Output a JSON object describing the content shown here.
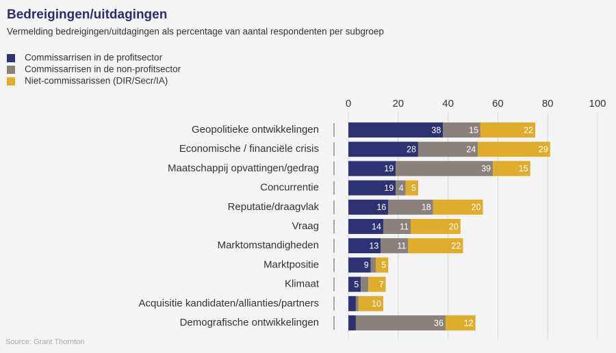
{
  "chart_data": {
    "type": "stacked-barh",
    "title": "Bedreigingen/uitdagingen",
    "subtitle": "Vermelding bedreigingen/uitdagingen als percentage van aantal respondenten per subgroep",
    "source": "Source: Grant Thornton",
    "categories": [
      "Geopolitieke ontwikkelingen",
      "Economische / financiële crisis",
      "Maatschappij opvattingen/gedrag",
      "Concurrentie",
      "Reputatie/draagvlak",
      "Vraag",
      "Marktomstandigheden",
      "Marktpositie",
      "Klimaat",
      "Acquisitie kandidaten/allianties/partners",
      "Demografische ontwikkelingen"
    ],
    "series": [
      {
        "name": "Commissarrisen in de profitsector",
        "color": "#2e3272",
        "values": [
          38,
          28,
          19,
          19,
          16,
          14,
          13,
          9,
          5,
          3,
          3
        ]
      },
      {
        "name": "Commissarrisen in de non-profitsector",
        "color": "#8a817c",
        "values": [
          15,
          24,
          39,
          4,
          18,
          11,
          11,
          2,
          3,
          1,
          36
        ]
      },
      {
        "name": "Niet-commissarissen (DIR/Secr/IA)",
        "color": "#e0ac2e",
        "values": [
          22,
          29,
          15,
          5,
          20,
          20,
          22,
          5,
          7,
          10,
          12
        ]
      }
    ],
    "xlim": [
      0,
      100
    ],
    "xticks": [
      0,
      20,
      40,
      60,
      80,
      100
    ],
    "grid": true
  }
}
